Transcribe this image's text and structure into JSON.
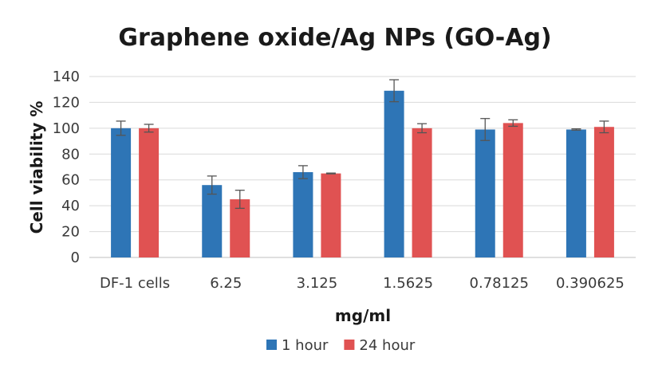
{
  "chart_data": {
    "type": "bar",
    "title": "Graphene oxide/Ag NPs (GO-Ag)",
    "xlabel": "mg/ml",
    "ylabel": "Cell viability %",
    "categories": [
      "DF-1 cells",
      "6.25",
      "3.125",
      "1.5625",
      "0.78125",
      "0.390625"
    ],
    "ylim": [
      0,
      140
    ],
    "yticks": [
      0,
      20,
      40,
      60,
      80,
      100,
      120,
      140
    ],
    "grid": true,
    "legend_position": "bottom",
    "series": [
      {
        "name": "1 hour",
        "color": "#2e75b6",
        "values": [
          100,
          56,
          66,
          129,
          99,
          99
        ],
        "errors": [
          5.5,
          7,
          5,
          8.5,
          8.5,
          0.5
        ]
      },
      {
        "name": "24 hour",
        "color": "#e05252",
        "values": [
          100,
          45,
          65,
          100,
          104,
          101
        ],
        "errors": [
          3,
          7,
          0.3,
          3.5,
          2.5,
          4.5
        ]
      }
    ]
  }
}
